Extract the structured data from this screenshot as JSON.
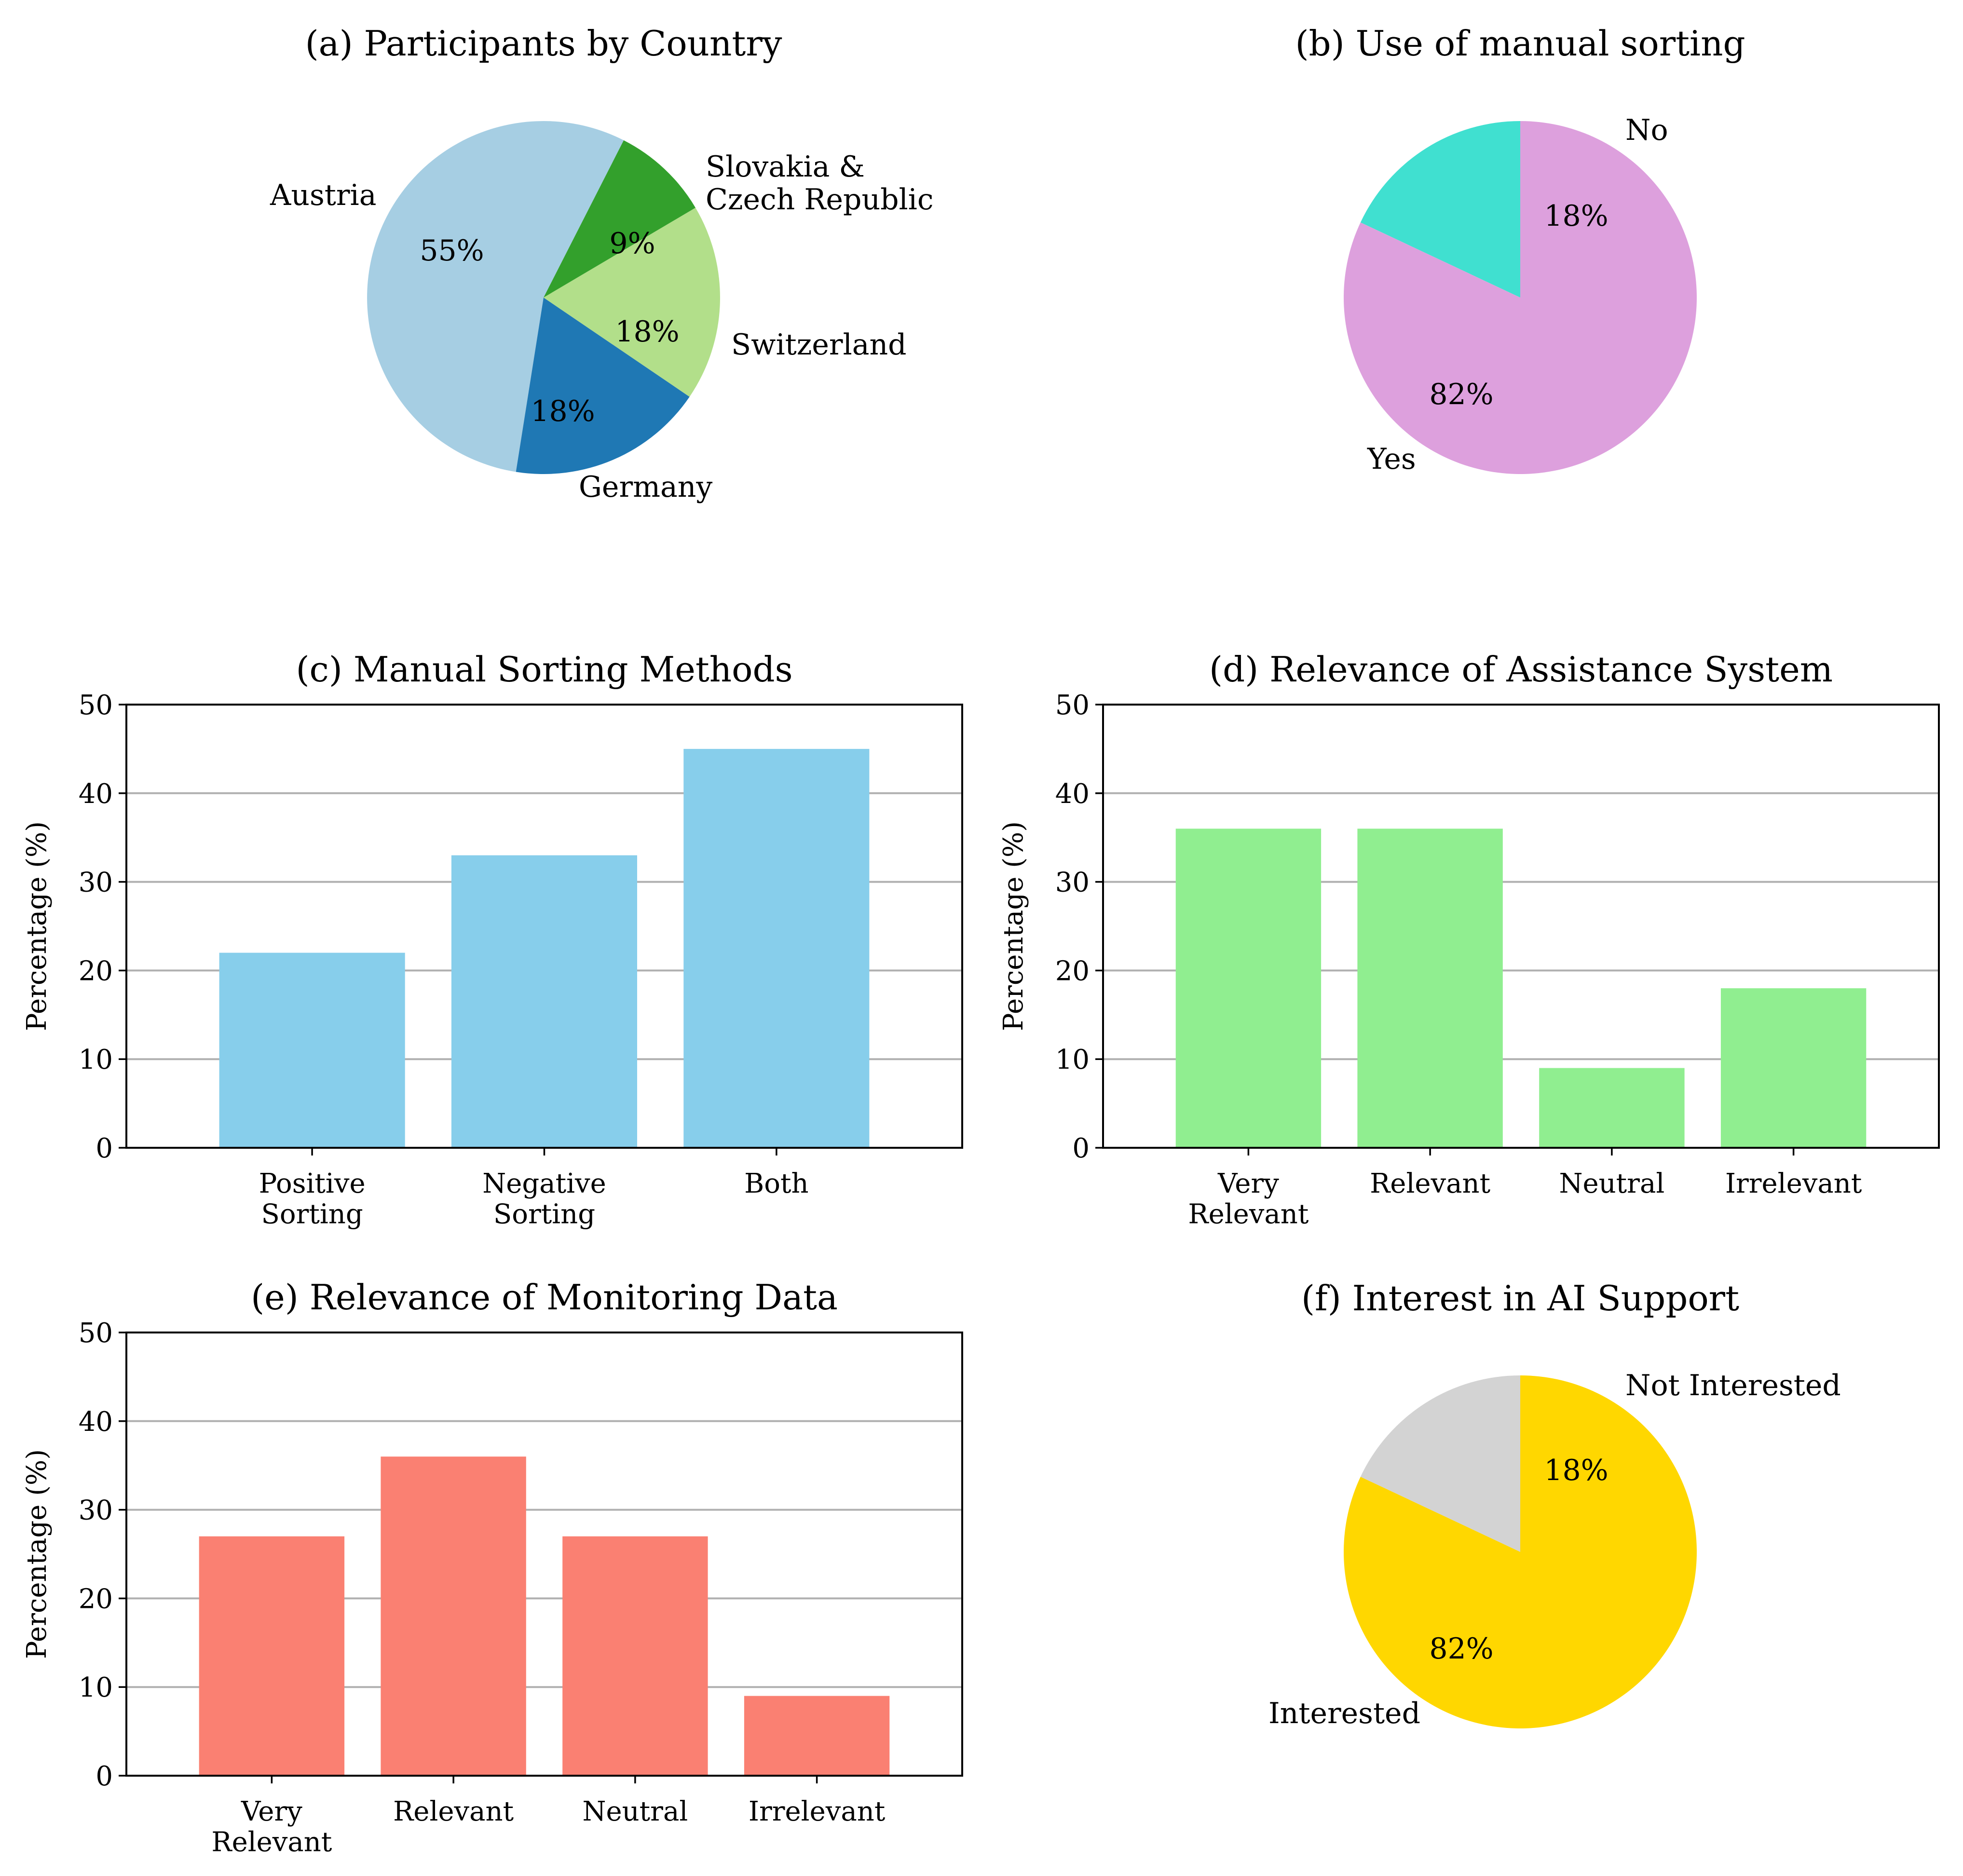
{
  "chart_data": [
    {
      "id": "a",
      "type": "pie",
      "title": "(a) Participants by Country",
      "labels": [
        "Austria",
        "Germany",
        "Switzerland",
        "Slovakia &\nCzech Republic"
      ],
      "values": [
        55,
        18,
        18,
        9
      ],
      "pct_labels": [
        "55%",
        "18%",
        "18%",
        "9%"
      ],
      "colors": [
        "#a6cee3",
        "#1f78b4",
        "#b2df8a",
        "#33a02c"
      ]
    },
    {
      "id": "b",
      "type": "pie",
      "title": "(b) Use of manual sorting",
      "labels": [
        "No",
        "Yes"
      ],
      "values": [
        18,
        82
      ],
      "pct_labels": [
        "18%",
        "82%"
      ],
      "colors": [
        "#40e0d0",
        "#dda0dd"
      ]
    },
    {
      "id": "c",
      "type": "bar",
      "title": "(c) Manual Sorting Methods",
      "categories": [
        "Positive\nSorting",
        "Negative\nSorting",
        "Both"
      ],
      "values": [
        22,
        33,
        45
      ],
      "ylabel": "Percentage (%)",
      "ylim": [
        0,
        50
      ],
      "yticks": [
        0,
        10,
        20,
        30,
        40,
        50
      ],
      "grid": "y",
      "color": "#87ceeb"
    },
    {
      "id": "d",
      "type": "bar",
      "title": "(d) Relevance of Assistance System",
      "categories": [
        "Very\nRelevant",
        "Relevant",
        "Neutral",
        "Irrelevant"
      ],
      "values": [
        36,
        36,
        9,
        18
      ],
      "ylabel": "Percentage (%)",
      "ylim": [
        0,
        50
      ],
      "yticks": [
        0,
        10,
        20,
        30,
        40,
        50
      ],
      "grid": "y",
      "color": "#90ee90"
    },
    {
      "id": "e",
      "type": "bar",
      "title": "(e) Relevance of Monitoring Data",
      "categories": [
        "Very\nRelevant",
        "Relevant",
        "Neutral",
        "Irrelevant"
      ],
      "values": [
        27,
        36,
        27,
        9
      ],
      "ylabel": "Percentage (%)",
      "ylim": [
        0,
        50
      ],
      "yticks": [
        0,
        10,
        20,
        30,
        40,
        50
      ],
      "grid": "y",
      "color": "#fa8072"
    },
    {
      "id": "f",
      "type": "pie",
      "title": "(f) Interest in AI Support",
      "labels": [
        "Not Interested",
        "Interested"
      ],
      "values": [
        18,
        82
      ],
      "pct_labels": [
        "18%",
        "82%"
      ],
      "colors": [
        "#d3d3d3",
        "#ffd700"
      ]
    }
  ]
}
